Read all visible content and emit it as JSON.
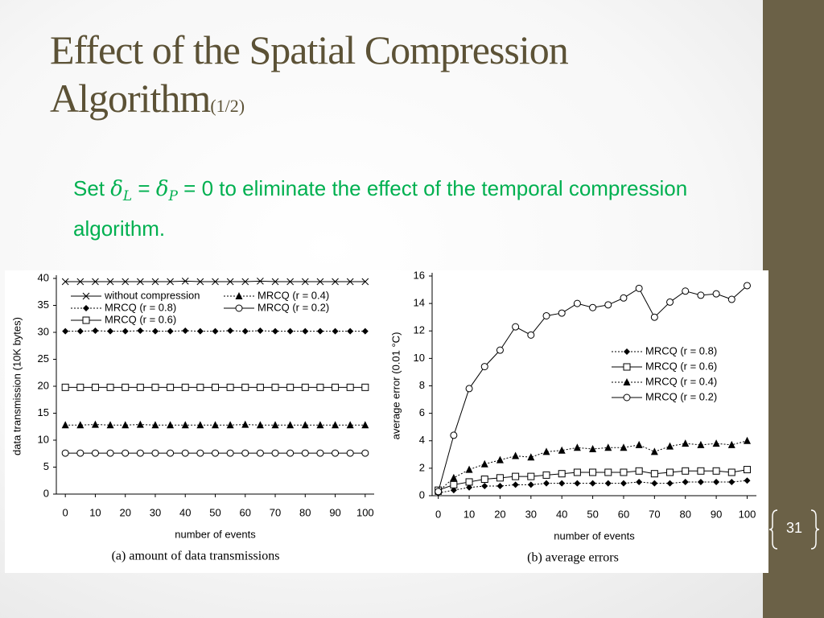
{
  "slide": {
    "title": "Effect of the Spatial Compression Algorithm",
    "title_suffix": "(1/2)",
    "body": [
      "Set ",
      " = ",
      " = 0 to eliminate the effect of the temporal compression algorithm."
    ],
    "symbols": [
      {
        "base": "δ",
        "sub": "L"
      },
      {
        "base": "δ",
        "sub": "P"
      }
    ],
    "page_number": "31"
  },
  "chart_data": [
    {
      "type": "line",
      "title": "(a) amount of data transmissions",
      "xlabel": "number of events",
      "ylabel": "data transmission (10K bytes)",
      "x": [
        0,
        5,
        10,
        15,
        20,
        25,
        30,
        35,
        40,
        45,
        50,
        55,
        60,
        65,
        70,
        75,
        80,
        85,
        90,
        95,
        100
      ],
      "xlim": [
        -3,
        103
      ],
      "xticks": [
        0,
        10,
        20,
        30,
        40,
        50,
        60,
        70,
        80,
        90,
        100
      ],
      "ylim": [
        0,
        40
      ],
      "yticks": [
        0,
        5,
        10,
        15,
        20,
        25,
        30,
        35,
        40
      ],
      "series": [
        {
          "name": "without compression",
          "color": "#000000",
          "marker": "x",
          "dash": "solid",
          "values": [
            39.4,
            39.4,
            39.4,
            39.4,
            39.4,
            39.4,
            39.4,
            39.4,
            39.5,
            39.4,
            39.4,
            39.4,
            39.4,
            39.5,
            39.4,
            39.4,
            39.4,
            39.4,
            39.4,
            39.4,
            39.4
          ]
        },
        {
          "name": "MRCQ (r = 0.4)",
          "color": "#000000",
          "marker": "triangle",
          "dash": "dotted",
          "values": [
            12.8,
            12.8,
            12.9,
            12.8,
            12.8,
            12.9,
            12.8,
            12.8,
            12.8,
            12.8,
            12.8,
            12.8,
            12.9,
            12.8,
            12.8,
            12.8,
            12.8,
            12.8,
            12.8,
            12.8,
            12.8
          ]
        },
        {
          "name": "MRCQ (r = 0.8)",
          "color": "#000000",
          "marker": "diamond",
          "dash": "dotted",
          "values": [
            30.2,
            30.2,
            30.3,
            30.2,
            30.2,
            30.3,
            30.2,
            30.2,
            30.3,
            30.2,
            30.2,
            30.3,
            30.2,
            30.3,
            30.2,
            30.2,
            30.2,
            30.2,
            30.2,
            30.2,
            30.2
          ]
        },
        {
          "name": "MRCQ (r = 0.2)",
          "color": "#000000",
          "marker": "circle",
          "dash": "solid",
          "values": [
            7.6,
            7.6,
            7.6,
            7.6,
            7.6,
            7.6,
            7.6,
            7.6,
            7.6,
            7.6,
            7.6,
            7.6,
            7.6,
            7.6,
            7.6,
            7.6,
            7.6,
            7.6,
            7.6,
            7.6,
            7.6
          ]
        },
        {
          "name": "MRCQ (r = 0.6)",
          "color": "#000000",
          "marker": "square",
          "dash": "solid",
          "values": [
            19.8,
            19.8,
            19.8,
            19.8,
            19.8,
            19.8,
            19.8,
            19.8,
            19.8,
            19.8,
            19.8,
            19.8,
            19.8,
            19.8,
            19.8,
            19.8,
            19.8,
            19.8,
            19.8,
            19.8,
            19.8
          ]
        }
      ]
    },
    {
      "type": "line",
      "title": "(b) average errors",
      "xlabel": "number of events",
      "ylabel": "average error (0.01 °C)",
      "x": [
        0,
        5,
        10,
        15,
        20,
        25,
        30,
        35,
        40,
        45,
        50,
        55,
        60,
        65,
        70,
        75,
        80,
        85,
        90,
        95,
        100
      ],
      "xlim": [
        -2,
        103
      ],
      "xticks": [
        0,
        10,
        20,
        30,
        40,
        50,
        60,
        70,
        80,
        90,
        100
      ],
      "ylim": [
        0,
        16
      ],
      "yticks": [
        0,
        2,
        4,
        6,
        8,
        10,
        12,
        14,
        16
      ],
      "series": [
        {
          "name": "MRCQ (r = 0.8)",
          "color": "#000000",
          "marker": "diamond",
          "dash": "dotted",
          "values": [
            0.2,
            0.4,
            0.6,
            0.7,
            0.7,
            0.8,
            0.8,
            0.9,
            0.9,
            0.9,
            0.9,
            0.9,
            0.9,
            1.0,
            0.9,
            0.9,
            1.0,
            1.0,
            1.0,
            1.0,
            1.1
          ]
        },
        {
          "name": "MRCQ (r = 0.6)",
          "color": "#000000",
          "marker": "square",
          "dash": "solid",
          "values": [
            0.4,
            0.8,
            1.0,
            1.2,
            1.3,
            1.4,
            1.4,
            1.5,
            1.6,
            1.7,
            1.7,
            1.7,
            1.7,
            1.8,
            1.6,
            1.7,
            1.8,
            1.8,
            1.8,
            1.7,
            1.9
          ]
        },
        {
          "name": "MRCQ (r = 0.4)",
          "color": "#000000",
          "marker": "triangle",
          "dash": "dotted",
          "values": [
            0.3,
            1.3,
            1.9,
            2.3,
            2.6,
            2.9,
            2.8,
            3.2,
            3.3,
            3.5,
            3.4,
            3.5,
            3.5,
            3.7,
            3.2,
            3.6,
            3.8,
            3.7,
            3.8,
            3.7,
            4.0
          ]
        },
        {
          "name": "MRCQ (r = 0.2)",
          "color": "#000000",
          "marker": "circle",
          "dash": "solid",
          "values": [
            0.3,
            4.4,
            7.8,
            9.4,
            10.6,
            12.3,
            11.7,
            13.1,
            13.3,
            14.0,
            13.7,
            13.9,
            14.4,
            15.1,
            13.0,
            14.1,
            14.9,
            14.6,
            14.7,
            14.3,
            15.3
          ]
        }
      ]
    }
  ]
}
